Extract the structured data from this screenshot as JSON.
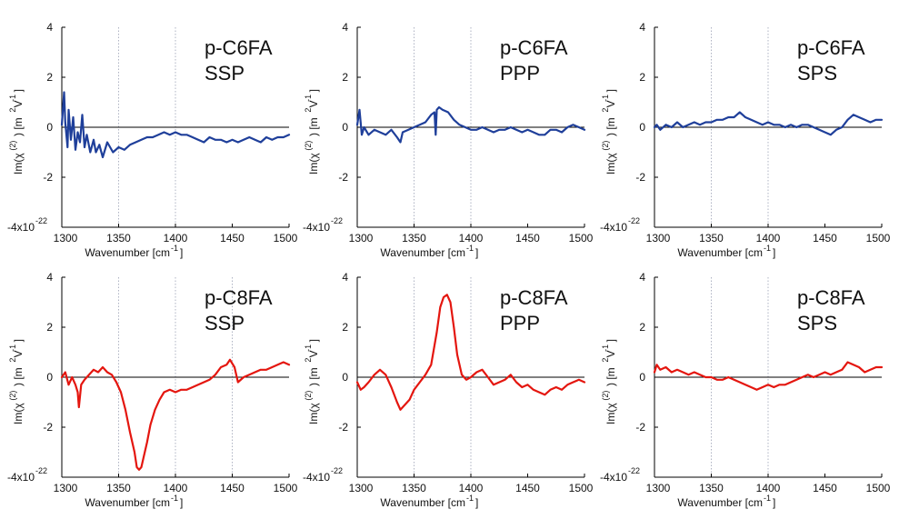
{
  "chart_data": [
    {
      "type": "line",
      "title_lines": [
        "p-C6FA",
        "SSP"
      ],
      "xlabel": "Wavenumber [cm",
      "xlabel_sup": "-1",
      "ylabel": "Im(χ",
      "ylabel_sup": "(2)",
      "ylabel_unit": ") [m",
      "ylabel_unit_sup1": "2",
      "ylabel_unit_mid": "V",
      "ylabel_unit_sup2": "-1",
      "ylabel_unit_end": "]",
      "xlim": [
        1300,
        1500
      ],
      "ylim": [
        -4,
        4
      ],
      "xticks": [
        "1300",
        "1350",
        "1400",
        "1450",
        "1500"
      ],
      "yticks": [
        "4",
        "2",
        "0",
        "-2",
        "-4x10"
      ],
      "y_exponent": "-22",
      "vgrid": [
        1350,
        1400
      ],
      "color": "#1f3f9a",
      "series": [
        {
          "x": [
            1300,
            1302,
            1303,
            1305,
            1306,
            1308,
            1310,
            1312,
            1314,
            1316,
            1318,
            1320,
            1322,
            1325,
            1328,
            1330,
            1333,
            1336,
            1340,
            1345,
            1350,
            1355,
            1360,
            1365,
            1370,
            1375,
            1380,
            1385,
            1390,
            1395,
            1400,
            1405,
            1410,
            1415,
            1420,
            1425,
            1430,
            1435,
            1440,
            1445,
            1450,
            1455,
            1460,
            1465,
            1470,
            1475,
            1480,
            1485,
            1490,
            1495,
            1500
          ],
          "y": [
            0.1,
            1.4,
            0.2,
            -0.8,
            0.7,
            -0.5,
            0.4,
            -0.9,
            -0.2,
            -0.6,
            0.5,
            -0.8,
            -0.3,
            -1.0,
            -0.5,
            -1.0,
            -0.7,
            -1.2,
            -0.6,
            -1.0,
            -0.8,
            -0.9,
            -0.7,
            -0.6,
            -0.5,
            -0.4,
            -0.4,
            -0.3,
            -0.2,
            -0.3,
            -0.2,
            -0.3,
            -0.3,
            -0.4,
            -0.5,
            -0.6,
            -0.4,
            -0.5,
            -0.5,
            -0.6,
            -0.5,
            -0.6,
            -0.5,
            -0.4,
            -0.5,
            -0.6,
            -0.4,
            -0.5,
            -0.4,
            -0.4,
            -0.3
          ]
        }
      ]
    },
    {
      "type": "line",
      "title_lines": [
        "p-C6FA",
        "PPP"
      ],
      "xlabel": "Wavenumber [cm",
      "xlabel_sup": "-1",
      "ylabel": "Im(χ",
      "ylabel_sup": "(2)",
      "ylabel_unit": ") [m",
      "ylabel_unit_sup1": "2",
      "ylabel_unit_mid": "V",
      "ylabel_unit_sup2": "-1",
      "ylabel_unit_end": "]",
      "xlim": [
        1300,
        1500
      ],
      "ylim": [
        -4,
        4
      ],
      "xticks": [
        "1300",
        "1350",
        "1400",
        "1450",
        "1500"
      ],
      "yticks": [
        "4",
        "2",
        "0",
        "-2",
        "-4x10"
      ],
      "y_exponent": "-22",
      "vgrid": [
        1350,
        1400
      ],
      "color": "#1f3f9a",
      "series": [
        {
          "x": [
            1300,
            1302,
            1304,
            1306,
            1310,
            1315,
            1320,
            1325,
            1330,
            1335,
            1338,
            1340,
            1345,
            1350,
            1355,
            1360,
            1365,
            1368,
            1369,
            1370,
            1372,
            1375,
            1380,
            1385,
            1390,
            1395,
            1400,
            1405,
            1410,
            1415,
            1420,
            1425,
            1430,
            1435,
            1440,
            1445,
            1450,
            1455,
            1460,
            1465,
            1470,
            1475,
            1480,
            1485,
            1490,
            1495,
            1500
          ],
          "y": [
            0.1,
            0.7,
            -0.3,
            0.0,
            -0.3,
            -0.1,
            -0.2,
            -0.3,
            -0.1,
            -0.4,
            -0.6,
            -0.2,
            -0.1,
            0.0,
            0.1,
            0.2,
            0.5,
            0.6,
            -0.3,
            0.7,
            0.8,
            0.7,
            0.6,
            0.3,
            0.1,
            0.0,
            -0.1,
            -0.1,
            0.0,
            -0.1,
            -0.2,
            -0.1,
            -0.1,
            0.0,
            -0.1,
            -0.2,
            -0.1,
            -0.2,
            -0.3,
            -0.3,
            -0.1,
            -0.1,
            -0.2,
            0.0,
            0.1,
            0.0,
            -0.1
          ]
        }
      ]
    },
    {
      "type": "line",
      "title_lines": [
        "p-C6FA",
        "SPS"
      ],
      "xlabel": "Wavenumber [cm",
      "xlabel_sup": "-1",
      "ylabel": "Im(χ",
      "ylabel_sup": "(2)",
      "ylabel_unit": ") [m",
      "ylabel_unit_sup1": "2",
      "ylabel_unit_mid": "V",
      "ylabel_unit_sup2": "-1",
      "ylabel_unit_end": "]",
      "xlim": [
        1300,
        1500
      ],
      "ylim": [
        -4,
        4
      ],
      "xticks": [
        "1300",
        "1350",
        "1400",
        "1450",
        "1500"
      ],
      "yticks": [
        "4",
        "2",
        "0",
        "-2",
        "-4x10"
      ],
      "y_exponent": "-22",
      "vgrid": [
        1350,
        1400
      ],
      "color": "#1f3f9a",
      "series": [
        {
          "x": [
            1300,
            1302,
            1305,
            1310,
            1315,
            1320,
            1325,
            1330,
            1335,
            1340,
            1345,
            1350,
            1355,
            1360,
            1365,
            1370,
            1375,
            1380,
            1385,
            1390,
            1395,
            1400,
            1405,
            1410,
            1415,
            1420,
            1425,
            1430,
            1435,
            1440,
            1445,
            1450,
            1455,
            1460,
            1465,
            1470,
            1475,
            1480,
            1485,
            1490,
            1495,
            1500
          ],
          "y": [
            0.0,
            0.1,
            -0.1,
            0.1,
            0.0,
            0.2,
            0.0,
            0.1,
            0.2,
            0.1,
            0.2,
            0.2,
            0.3,
            0.3,
            0.4,
            0.4,
            0.6,
            0.4,
            0.3,
            0.2,
            0.1,
            0.2,
            0.1,
            0.1,
            0.0,
            0.1,
            0.0,
            0.1,
            0.1,
            0.0,
            -0.1,
            -0.2,
            -0.3,
            -0.1,
            0.0,
            0.3,
            0.5,
            0.4,
            0.3,
            0.2,
            0.3,
            0.3
          ]
        }
      ]
    },
    {
      "type": "line",
      "title_lines": [
        "p-C8FA",
        "SSP"
      ],
      "xlabel": "Wavenumber [cm",
      "xlabel_sup": "-1",
      "ylabel": "Im(χ",
      "ylabel_sup": "(2)",
      "ylabel_unit": ") [m",
      "ylabel_unit_sup1": "2",
      "ylabel_unit_mid": "V",
      "ylabel_unit_sup2": "-1",
      "ylabel_unit_end": "]",
      "xlim": [
        1300,
        1500
      ],
      "ylim": [
        -4,
        4
      ],
      "xticks": [
        "1300",
        "1350",
        "1400",
        "1450",
        "1500"
      ],
      "yticks": [
        "4",
        "2",
        "0",
        "-2",
        "-4x10"
      ],
      "y_exponent": "-22",
      "vgrid": [
        1350,
        1400,
        1450
      ],
      "color": "#e4160f",
      "series": [
        {
          "x": [
            1300,
            1303,
            1306,
            1309,
            1312,
            1314,
            1315,
            1317,
            1320,
            1324,
            1328,
            1332,
            1336,
            1340,
            1344,
            1348,
            1352,
            1356,
            1360,
            1364,
            1366,
            1368,
            1370,
            1372,
            1375,
            1378,
            1382,
            1386,
            1390,
            1395,
            1400,
            1405,
            1410,
            1415,
            1420,
            1425,
            1430,
            1435,
            1440,
            1445,
            1448,
            1452,
            1455,
            1460,
            1465,
            1470,
            1475,
            1480,
            1485,
            1490,
            1495,
            1500
          ],
          "y": [
            0.0,
            0.2,
            -0.3,
            0.0,
            -0.3,
            -0.6,
            -1.2,
            -0.3,
            -0.1,
            0.1,
            0.3,
            0.2,
            0.4,
            0.2,
            0.1,
            -0.2,
            -0.6,
            -1.3,
            -2.2,
            -3.0,
            -3.6,
            -3.7,
            -3.6,
            -3.2,
            -2.6,
            -1.9,
            -1.3,
            -0.9,
            -0.6,
            -0.5,
            -0.6,
            -0.5,
            -0.5,
            -0.4,
            -0.3,
            -0.2,
            -0.1,
            0.1,
            0.4,
            0.5,
            0.7,
            0.4,
            -0.2,
            0.0,
            0.1,
            0.2,
            0.3,
            0.3,
            0.4,
            0.5,
            0.6,
            0.5
          ]
        }
      ]
    },
    {
      "type": "line",
      "title_lines": [
        "p-C8FA",
        "PPP"
      ],
      "xlabel": "Wavenumber [cm",
      "xlabel_sup": "-1",
      "ylabel": "Im(χ",
      "ylabel_sup": "(2)",
      "ylabel_unit": ") [m",
      "ylabel_unit_sup1": "2",
      "ylabel_unit_mid": "V",
      "ylabel_unit_sup2": "-1",
      "ylabel_unit_end": "]",
      "xlim": [
        1300,
        1500
      ],
      "ylim": [
        -4,
        4
      ],
      "xticks": [
        "1300",
        "1350",
        "1400",
        "1450",
        "1500"
      ],
      "yticks": [
        "4",
        "2",
        "0",
        "-2",
        "-4x10"
      ],
      "y_exponent": "-22",
      "vgrid": [
        1350,
        1400
      ],
      "color": "#e4160f",
      "series": [
        {
          "x": [
            1300,
            1303,
            1306,
            1310,
            1315,
            1320,
            1325,
            1330,
            1335,
            1338,
            1342,
            1346,
            1350,
            1355,
            1360,
            1365,
            1370,
            1373,
            1376,
            1379,
            1382,
            1385,
            1388,
            1392,
            1396,
            1400,
            1405,
            1410,
            1415,
            1420,
            1425,
            1430,
            1435,
            1440,
            1445,
            1450,
            1455,
            1460,
            1465,
            1470,
            1475,
            1480,
            1485,
            1490,
            1495,
            1500
          ],
          "y": [
            -0.2,
            -0.5,
            -0.4,
            -0.2,
            0.1,
            0.3,
            0.1,
            -0.4,
            -1.0,
            -1.3,
            -1.1,
            -0.9,
            -0.5,
            -0.2,
            0.1,
            0.5,
            1.8,
            2.8,
            3.2,
            3.3,
            3.0,
            2.0,
            0.9,
            0.1,
            -0.1,
            0.0,
            0.2,
            0.3,
            0.0,
            -0.3,
            -0.2,
            -0.1,
            0.1,
            -0.2,
            -0.4,
            -0.3,
            -0.5,
            -0.6,
            -0.7,
            -0.5,
            -0.4,
            -0.5,
            -0.3,
            -0.2,
            -0.1,
            -0.2
          ]
        }
      ]
    },
    {
      "type": "line",
      "title_lines": [
        "p-C8FA",
        "SPS"
      ],
      "xlabel": "Wavenumber [cm",
      "xlabel_sup": "-1",
      "ylabel": "Im(χ",
      "ylabel_sup": "(2)",
      "ylabel_unit": ") [m",
      "ylabel_unit_sup1": "2",
      "ylabel_unit_mid": "V",
      "ylabel_unit_sup2": "-1",
      "ylabel_unit_end": "]",
      "xlim": [
        1300,
        1500
      ],
      "ylim": [
        -4,
        4
      ],
      "xticks": [
        "1300",
        "1350",
        "1400",
        "1450",
        "1500"
      ],
      "yticks": [
        "4",
        "2",
        "0",
        "-2",
        "-4x10"
      ],
      "y_exponent": "-22",
      "vgrid": [
        1350,
        1400
      ],
      "color": "#e4160f",
      "series": [
        {
          "x": [
            1300,
            1302,
            1305,
            1310,
            1315,
            1320,
            1325,
            1330,
            1335,
            1340,
            1345,
            1350,
            1355,
            1360,
            1365,
            1370,
            1375,
            1380,
            1385,
            1390,
            1395,
            1400,
            1405,
            1410,
            1415,
            1420,
            1425,
            1430,
            1435,
            1440,
            1445,
            1450,
            1455,
            1460,
            1465,
            1470,
            1475,
            1480,
            1485,
            1490,
            1495,
            1500
          ],
          "y": [
            0.2,
            0.5,
            0.3,
            0.4,
            0.2,
            0.3,
            0.2,
            0.1,
            0.2,
            0.1,
            0.0,
            0.0,
            -0.1,
            -0.1,
            0.0,
            -0.1,
            -0.2,
            -0.3,
            -0.4,
            -0.5,
            -0.4,
            -0.3,
            -0.4,
            -0.3,
            -0.3,
            -0.2,
            -0.1,
            0.0,
            0.1,
            0.0,
            0.1,
            0.2,
            0.1,
            0.2,
            0.3,
            0.6,
            0.5,
            0.4,
            0.2,
            0.3,
            0.4,
            0.4
          ]
        }
      ]
    }
  ]
}
